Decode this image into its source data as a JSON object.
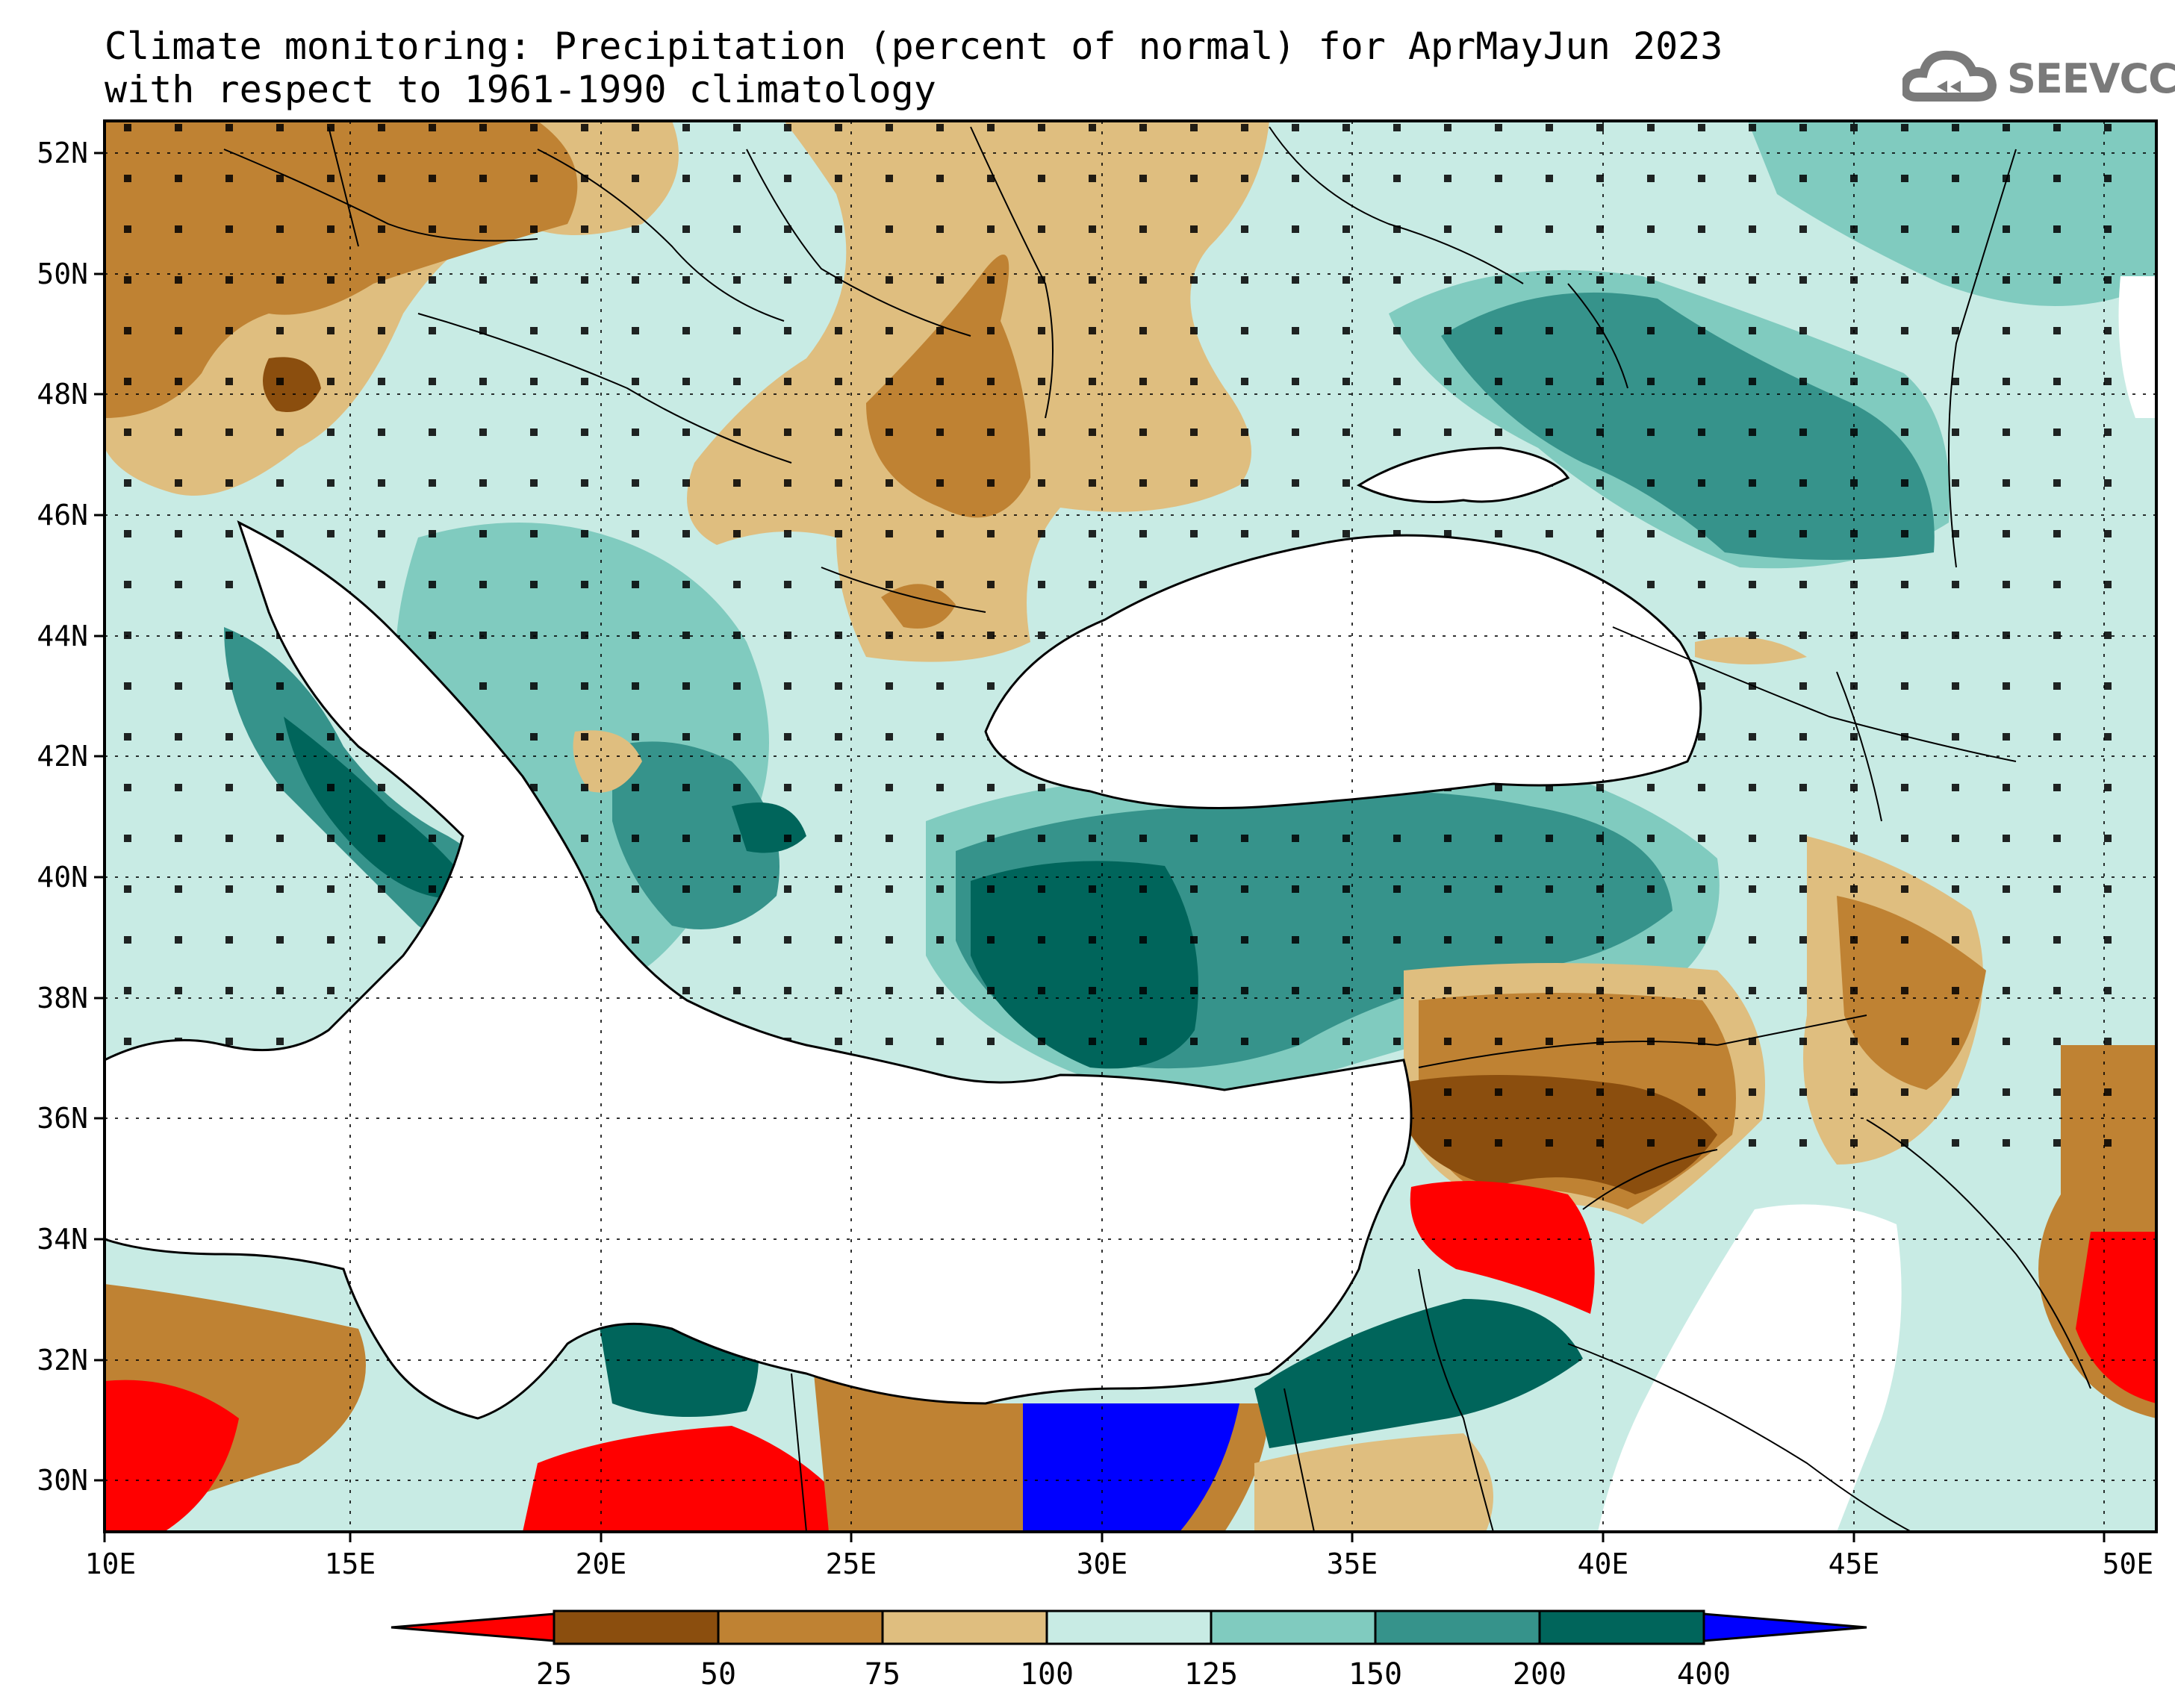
{
  "title": {
    "line1": "Climate monitoring: Precipitation (percent of normal) for AprMayJun 2023",
    "line2": "with respect to 1961-1990 climatology"
  },
  "logo": {
    "text": "SEEVCCC",
    "icon": "cloud-icon"
  },
  "axes": {
    "lat_labels": [
      "52N",
      "50N",
      "48N",
      "46N",
      "44N",
      "42N",
      "40N",
      "38N",
      "36N",
      "34N",
      "32N",
      "30N"
    ],
    "lon_labels": [
      "10E",
      "15E",
      "20E",
      "25E",
      "30E",
      "35E",
      "40E",
      "45E",
      "50E"
    ]
  },
  "colorbar": {
    "labels": [
      "25",
      "50",
      "75",
      "100",
      "125",
      "150",
      "200",
      "400"
    ],
    "colors": [
      "#ff0000",
      "#8b4e0e",
      "#bf8233",
      "#dfbe7f",
      "#c8ebe4",
      "#80cbbf",
      "#36938b",
      "#00655b",
      "#0000ff"
    ]
  },
  "legend_classes": [
    {
      "range": "<25",
      "color": "#ff0000"
    },
    {
      "range": "25-50",
      "color": "#8b4e0e"
    },
    {
      "range": "50-75",
      "color": "#bf8233"
    },
    {
      "range": "75-100",
      "color": "#dfbe7f"
    },
    {
      "range": "100-125",
      "color": "#c8ebe4"
    },
    {
      "range": "125-150",
      "color": "#80cbbf"
    },
    {
      "range": "150-200",
      "color": "#36938b"
    },
    {
      "range": "200-400",
      "color": "#00655b"
    },
    {
      "range": ">400",
      "color": "#0000ff"
    }
  ]
}
